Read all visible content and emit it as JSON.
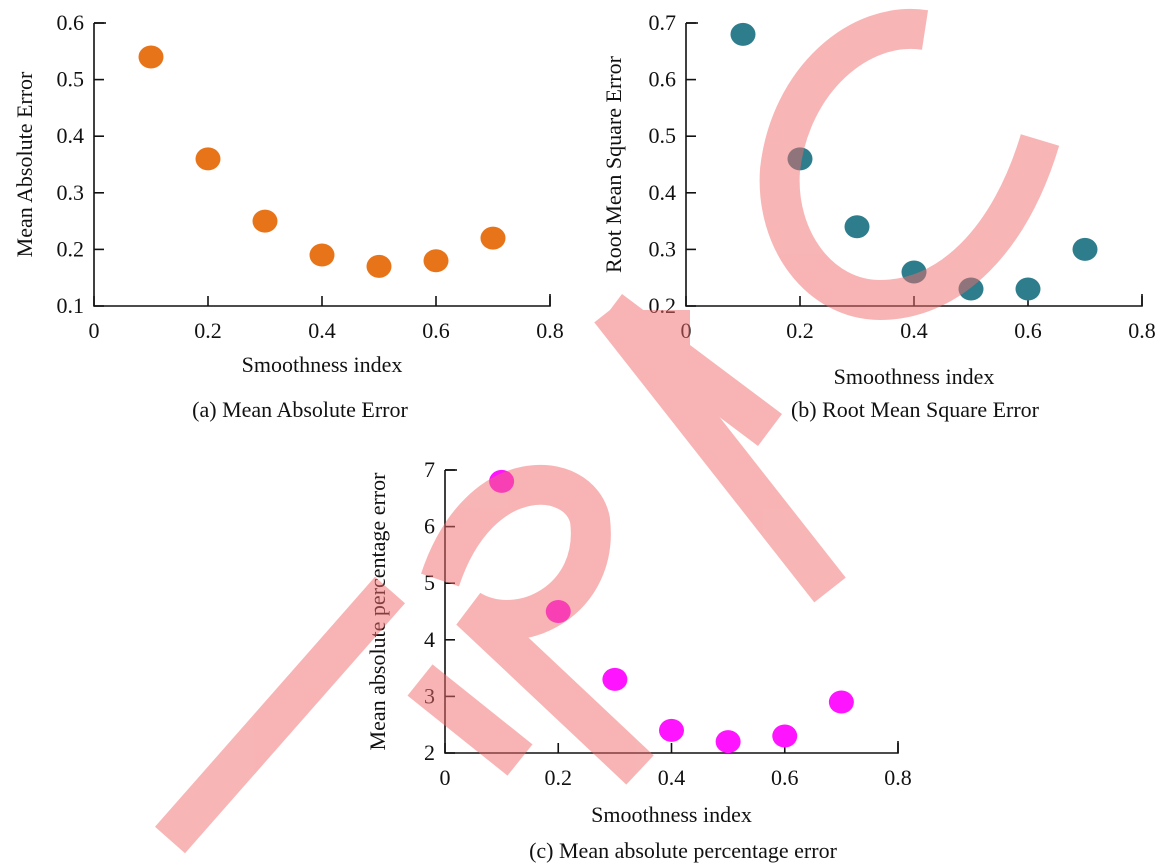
{
  "chart_data": [
    {
      "id": "a",
      "type": "scatter",
      "caption": "(a) Mean Absolute Error",
      "xlabel": "Smoothness index",
      "ylabel": "Mean Absolute Error",
      "xlim": [
        0,
        0.8
      ],
      "ylim": [
        0.1,
        0.6
      ],
      "xticks": [
        0,
        0.2,
        0.4,
        0.6,
        0.8
      ],
      "yticks": [
        0.1,
        0.2,
        0.3,
        0.4,
        0.5,
        0.6
      ],
      "xtick_labels": [
        "0",
        "0.2",
        "0.4",
        "0.6",
        "0.8"
      ],
      "ytick_labels": [
        "0.1",
        "0.2",
        "0.3",
        "0.4",
        "0.5",
        "0.6"
      ],
      "marker_color": "#e8741a",
      "points": [
        {
          "x": 0.1,
          "y": 0.54
        },
        {
          "x": 0.2,
          "y": 0.36
        },
        {
          "x": 0.3,
          "y": 0.25
        },
        {
          "x": 0.4,
          "y": 0.19
        },
        {
          "x": 0.5,
          "y": 0.17
        },
        {
          "x": 0.6,
          "y": 0.18
        },
        {
          "x": 0.7,
          "y": 0.22
        }
      ],
      "grid": false
    },
    {
      "id": "b",
      "type": "scatter",
      "caption": "(b) Root Mean Square Error",
      "xlabel": "Smoothness index",
      "ylabel": "Root Mean Square Error",
      "xlim": [
        0,
        0.8
      ],
      "ylim": [
        0.2,
        0.7
      ],
      "xticks": [
        0,
        0.2,
        0.4,
        0.6,
        0.8
      ],
      "yticks": [
        0.2,
        0.3,
        0.4,
        0.5,
        0.6,
        0.7
      ],
      "xtick_labels": [
        "0",
        "0.2",
        "0.4",
        "0.6",
        "0.8"
      ],
      "ytick_labels": [
        "0.2",
        "0.3",
        "0.4",
        "0.5",
        "0.6",
        "0.7"
      ],
      "marker_color": "#2e7d8c",
      "points": [
        {
          "x": 0.1,
          "y": 0.68
        },
        {
          "x": 0.2,
          "y": 0.46
        },
        {
          "x": 0.3,
          "y": 0.34
        },
        {
          "x": 0.4,
          "y": 0.26
        },
        {
          "x": 0.5,
          "y": 0.23
        },
        {
          "x": 0.6,
          "y": 0.23
        },
        {
          "x": 0.7,
          "y": 0.3
        }
      ],
      "grid": false
    },
    {
      "id": "c",
      "type": "scatter",
      "caption": "(c) Mean absolute percentage error",
      "xlabel": "Smoothness index",
      "ylabel": "Mean absolute percentage error",
      "xlim": [
        0,
        0.8
      ],
      "ylim": [
        2,
        7
      ],
      "xticks": [
        0,
        0.2,
        0.4,
        0.6,
        0.8
      ],
      "yticks": [
        2,
        3,
        4,
        5,
        6,
        7
      ],
      "xtick_labels": [
        "0",
        "0.2",
        "0.4",
        "0.6",
        "0.8"
      ],
      "ytick_labels": [
        "2",
        "3",
        "4",
        "5",
        "6",
        "7"
      ],
      "marker_color": "#ff14ff",
      "points": [
        {
          "x": 0.1,
          "y": 6.8
        },
        {
          "x": 0.2,
          "y": 4.5
        },
        {
          "x": 0.3,
          "y": 3.3
        },
        {
          "x": 0.4,
          "y": 2.4
        },
        {
          "x": 0.5,
          "y": 2.2
        },
        {
          "x": 0.6,
          "y": 2.3
        },
        {
          "x": 0.7,
          "y": 2.9
        }
      ],
      "grid": false
    }
  ],
  "watermark": {
    "text": "RETRACTED",
    "color": "#f26b6b"
  }
}
